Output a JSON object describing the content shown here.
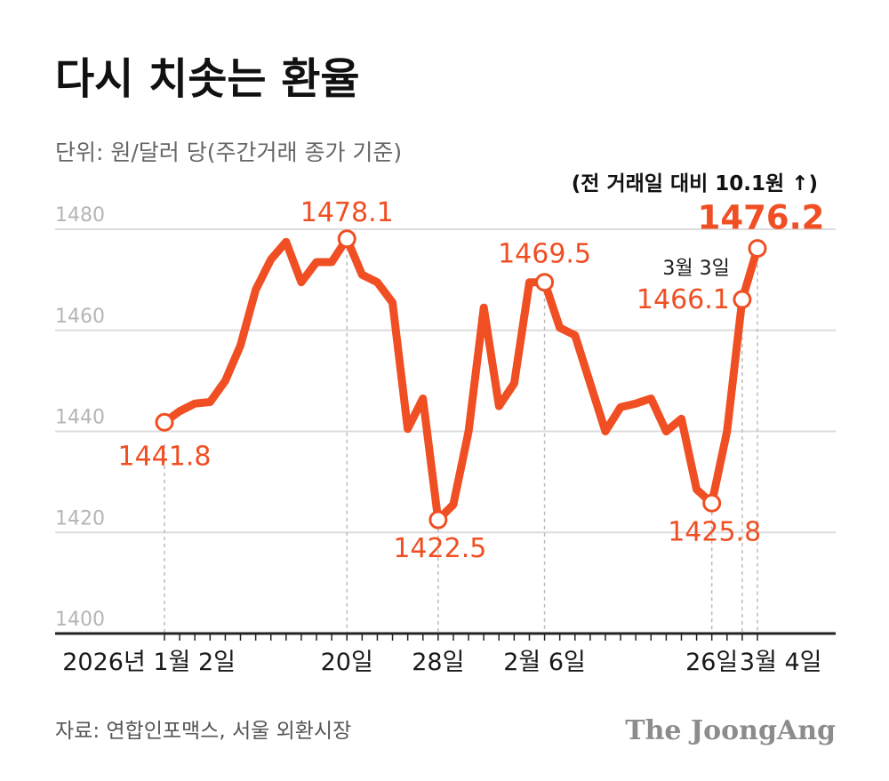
{
  "colors": {
    "line": "#f04e23",
    "grid": "#dcdcdc",
    "axis": "#222222",
    "guide": "#bbbbbb"
  },
  "chart_data": {
    "type": "line",
    "title": "다시 치솟는 환율",
    "subtitle": "단위: 원/달러 당(주간거래 종가 기준)",
    "note": "(전 거래일 대비 10.1원 ↑)",
    "source": "자료: 연합인포맥스, 서울 외환시장",
    "brand": "The JoongAng",
    "ylim": [
      1400,
      1484
    ],
    "yticks": [
      "1400",
      "1420",
      "1440",
      "1460",
      "1480"
    ],
    "grid": true,
    "xtick_labels": [
      {
        "index": 0,
        "label": "2026년 1월 2일"
      },
      {
        "index": 12,
        "label": "20일"
      },
      {
        "index": 18,
        "label": "28일"
      },
      {
        "index": 25,
        "label": "2월 6일"
      },
      {
        "index": 36,
        "label": "26일"
      },
      {
        "index": 38,
        "label": "3월 4일"
      }
    ],
    "values": [
      1441.8,
      1444,
      1445.5,
      1445.8,
      1450,
      1457,
      1468,
      1474,
      1477.5,
      1469.5,
      1473.5,
      1473.5,
      1478.1,
      1471,
      1469.5,
      1465.5,
      1440.5,
      1446.5,
      1422.5,
      1425.5,
      1440,
      1464.5,
      1445,
      1449.5,
      1469.5,
      1469.5,
      1460.5,
      1459,
      1449.5,
      1440,
      1444.8,
      1445.5,
      1446.5,
      1440,
      1442.5,
      1428.5,
      1425.8,
      1440,
      1466.1,
      1476.2
    ],
    "annotations": [
      {
        "index": 0,
        "label": "1441.8",
        "style": "normal"
      },
      {
        "index": 12,
        "label": "1478.1",
        "style": "normal"
      },
      {
        "index": 18,
        "label": "1422.5",
        "style": "normal"
      },
      {
        "index": 25,
        "label": "1469.5",
        "style": "normal"
      },
      {
        "index": 36,
        "label": "1425.8",
        "style": "normal"
      },
      {
        "index": 38,
        "label": "1466.1",
        "style": "normal",
        "event": "3월 3일"
      },
      {
        "index": 39,
        "label": "1476.2",
        "style": "big"
      }
    ]
  }
}
